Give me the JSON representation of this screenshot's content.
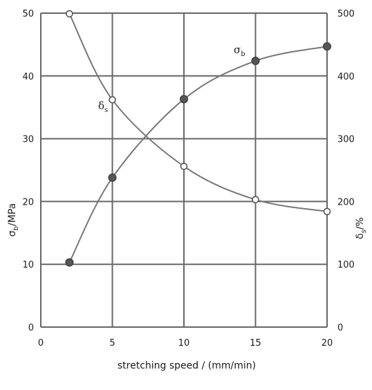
{
  "chart_data": {
    "type": "line",
    "xlabel": "stretching speed / (mm/min)",
    "ylabel_left": {
      "symbol": "σ",
      "subscript": "b",
      "unit": "/MPa"
    },
    "ylabel_right": {
      "symbol": "δ",
      "subscript": "s",
      "unit": "/%"
    },
    "xlim": [
      0,
      20
    ],
    "ylim_left": [
      0,
      50
    ],
    "ylim_right": [
      0,
      500
    ],
    "x_ticks": [
      0,
      5,
      10,
      15,
      20
    ],
    "y_left_ticks": [
      0,
      10,
      20,
      30,
      40,
      50
    ],
    "y_right_ticks": [
      0,
      100,
      200,
      300,
      400,
      500
    ],
    "grid": true,
    "series": [
      {
        "name": "σb",
        "label_symbol": "σ",
        "label_subscript": "b",
        "axis": "left",
        "marker": "filled",
        "x": [
          2,
          5,
          10,
          15,
          20
        ],
        "y": [
          10.3,
          23.8,
          36.3,
          42.4,
          44.7
        ]
      },
      {
        "name": "δs",
        "label_symbol": "δ",
        "label_subscript": "s",
        "axis": "right",
        "marker": "open",
        "x": [
          2,
          5,
          10,
          15,
          20
        ],
        "y": [
          499,
          362,
          256,
          203,
          184
        ]
      }
    ],
    "colors": {
      "line": "#777777",
      "grid": "#666666",
      "filled_marker": "#555555",
      "open_marker_fill": "#ffffff"
    }
  }
}
